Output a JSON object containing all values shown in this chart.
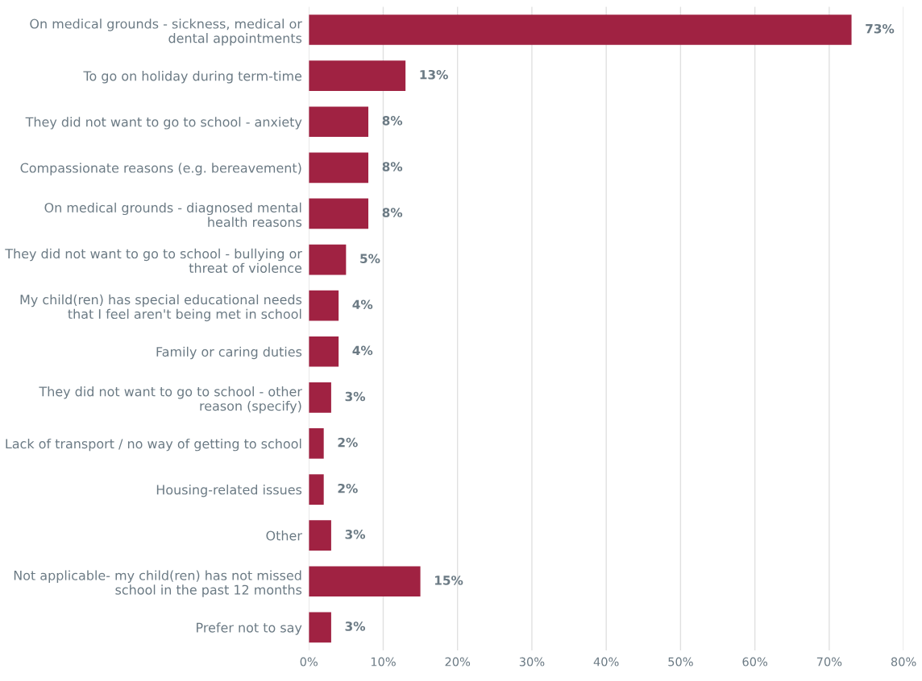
{
  "chart_data": {
    "type": "bar",
    "orientation": "horizontal",
    "categories": [
      "On medical grounds - sickness, medical or\ndental appointments",
      "To go on holiday during term-time",
      "They did not want to go to school - anxiety",
      "Compassionate reasons (e.g. bereavement)",
      "On medical grounds - diagnosed mental\nhealth reasons",
      "They did not want to go to school - bullying or\nthreat of violence",
      "My child(ren) has special educational needs\nthat I feel aren't being met in school",
      "Family or caring duties",
      "They did not want to go to school - other\nreason (specify)",
      "Lack of transport / no way of getting to school",
      "Housing-related issues",
      "Other",
      "Not applicable- my child(ren) has not missed\nschool in the past 12 months",
      "Prefer not to say"
    ],
    "values": [
      73,
      13,
      8,
      8,
      8,
      5,
      4,
      4,
      3,
      2,
      2,
      3,
      15,
      3
    ],
    "value_labels": [
      "73%",
      "13%",
      "8%",
      "8%",
      "8%",
      "5%",
      "4%",
      "4%",
      "3%",
      "2%",
      "2%",
      "3%",
      "15%",
      "3%"
    ],
    "color": "#a02242",
    "xlim": [
      0,
      80
    ],
    "xticks": [
      {
        "value": 0,
        "label": "0%"
      },
      {
        "value": 10,
        "label": "10%"
      },
      {
        "value": 20,
        "label": "20%"
      },
      {
        "value": 30,
        "label": "30%"
      },
      {
        "value": 40,
        "label": "40%"
      },
      {
        "value": 50,
        "label": "50%"
      },
      {
        "value": 60,
        "label": "60%"
      },
      {
        "value": 70,
        "label": "70%"
      },
      {
        "value": 80,
        "label": "80%"
      }
    ],
    "grid": "x",
    "legend": false
  }
}
